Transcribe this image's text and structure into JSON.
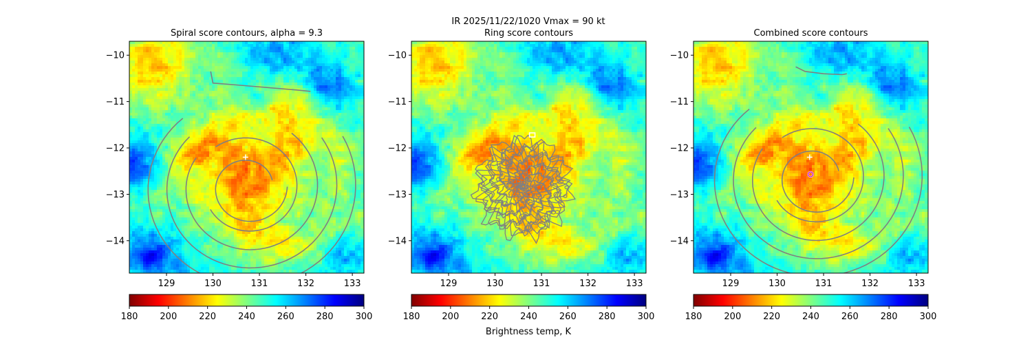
{
  "figure": {
    "suptitle": "IR  2025/11/22/1020    Vmax = 90 kt",
    "colorbar_label": "Brightness temp, K",
    "colormap": [
      "#800000",
      "#ff0000",
      "#ff8000",
      "#ffff00",
      "#80ff80",
      "#00ffff",
      "#0080ff",
      "#0000ff",
      "#000080"
    ]
  },
  "chart_data": [
    {
      "type": "heatmap",
      "title": "Spiral score contours, alpha =  9.3",
      "overlay": "spiral contours",
      "xlim": [
        128.2,
        133.25
      ],
      "ylim": [
        -14.7,
        -9.7
      ],
      "xticks": [
        "129",
        "130",
        "131",
        "132",
        "133"
      ],
      "yticks": [
        "−10",
        "−11",
        "−12",
        "−13",
        "−14"
      ],
      "colorbar_ticks": [
        "180",
        "200",
        "220",
        "240",
        "260",
        "280",
        "300"
      ],
      "colorbar_range": [
        180,
        300
      ],
      "center_marks": [
        {
          "kind": "plus",
          "lon": 130.7,
          "lat": -12.2
        }
      ]
    },
    {
      "type": "heatmap",
      "title": "Ring score contours",
      "overlay": "ring contours",
      "xlim": [
        128.2,
        133.25
      ],
      "ylim": [
        -14.7,
        -9.7
      ],
      "xticks": [
        "129",
        "130",
        "131",
        "132",
        "133"
      ],
      "yticks": [
        "−10",
        "−11",
        "−12",
        "−13",
        "−14"
      ],
      "colorbar_ticks": [
        "180",
        "200",
        "220",
        "240",
        "260",
        "280",
        "300"
      ],
      "colorbar_range": [
        180,
        300
      ],
      "center_marks": [
        {
          "kind": "square",
          "lon": 130.8,
          "lat": -11.72
        }
      ]
    },
    {
      "type": "heatmap",
      "title": "Combined score contours",
      "overlay": "combined contours",
      "xlim": [
        128.2,
        133.25
      ],
      "ylim": [
        -14.7,
        -9.7
      ],
      "xticks": [
        "129",
        "130",
        "131",
        "132",
        "133"
      ],
      "yticks": [
        "−10",
        "−11",
        "−12",
        "−13",
        "−14"
      ],
      "colorbar_ticks": [
        "180",
        "200",
        "220",
        "240",
        "260",
        "280",
        "300"
      ],
      "colorbar_range": [
        180,
        300
      ],
      "center_marks": [
        {
          "kind": "plus",
          "lon": 130.7,
          "lat": -12.2
        },
        {
          "kind": "circle",
          "lon": 130.72,
          "lat": -12.57
        }
      ]
    }
  ]
}
